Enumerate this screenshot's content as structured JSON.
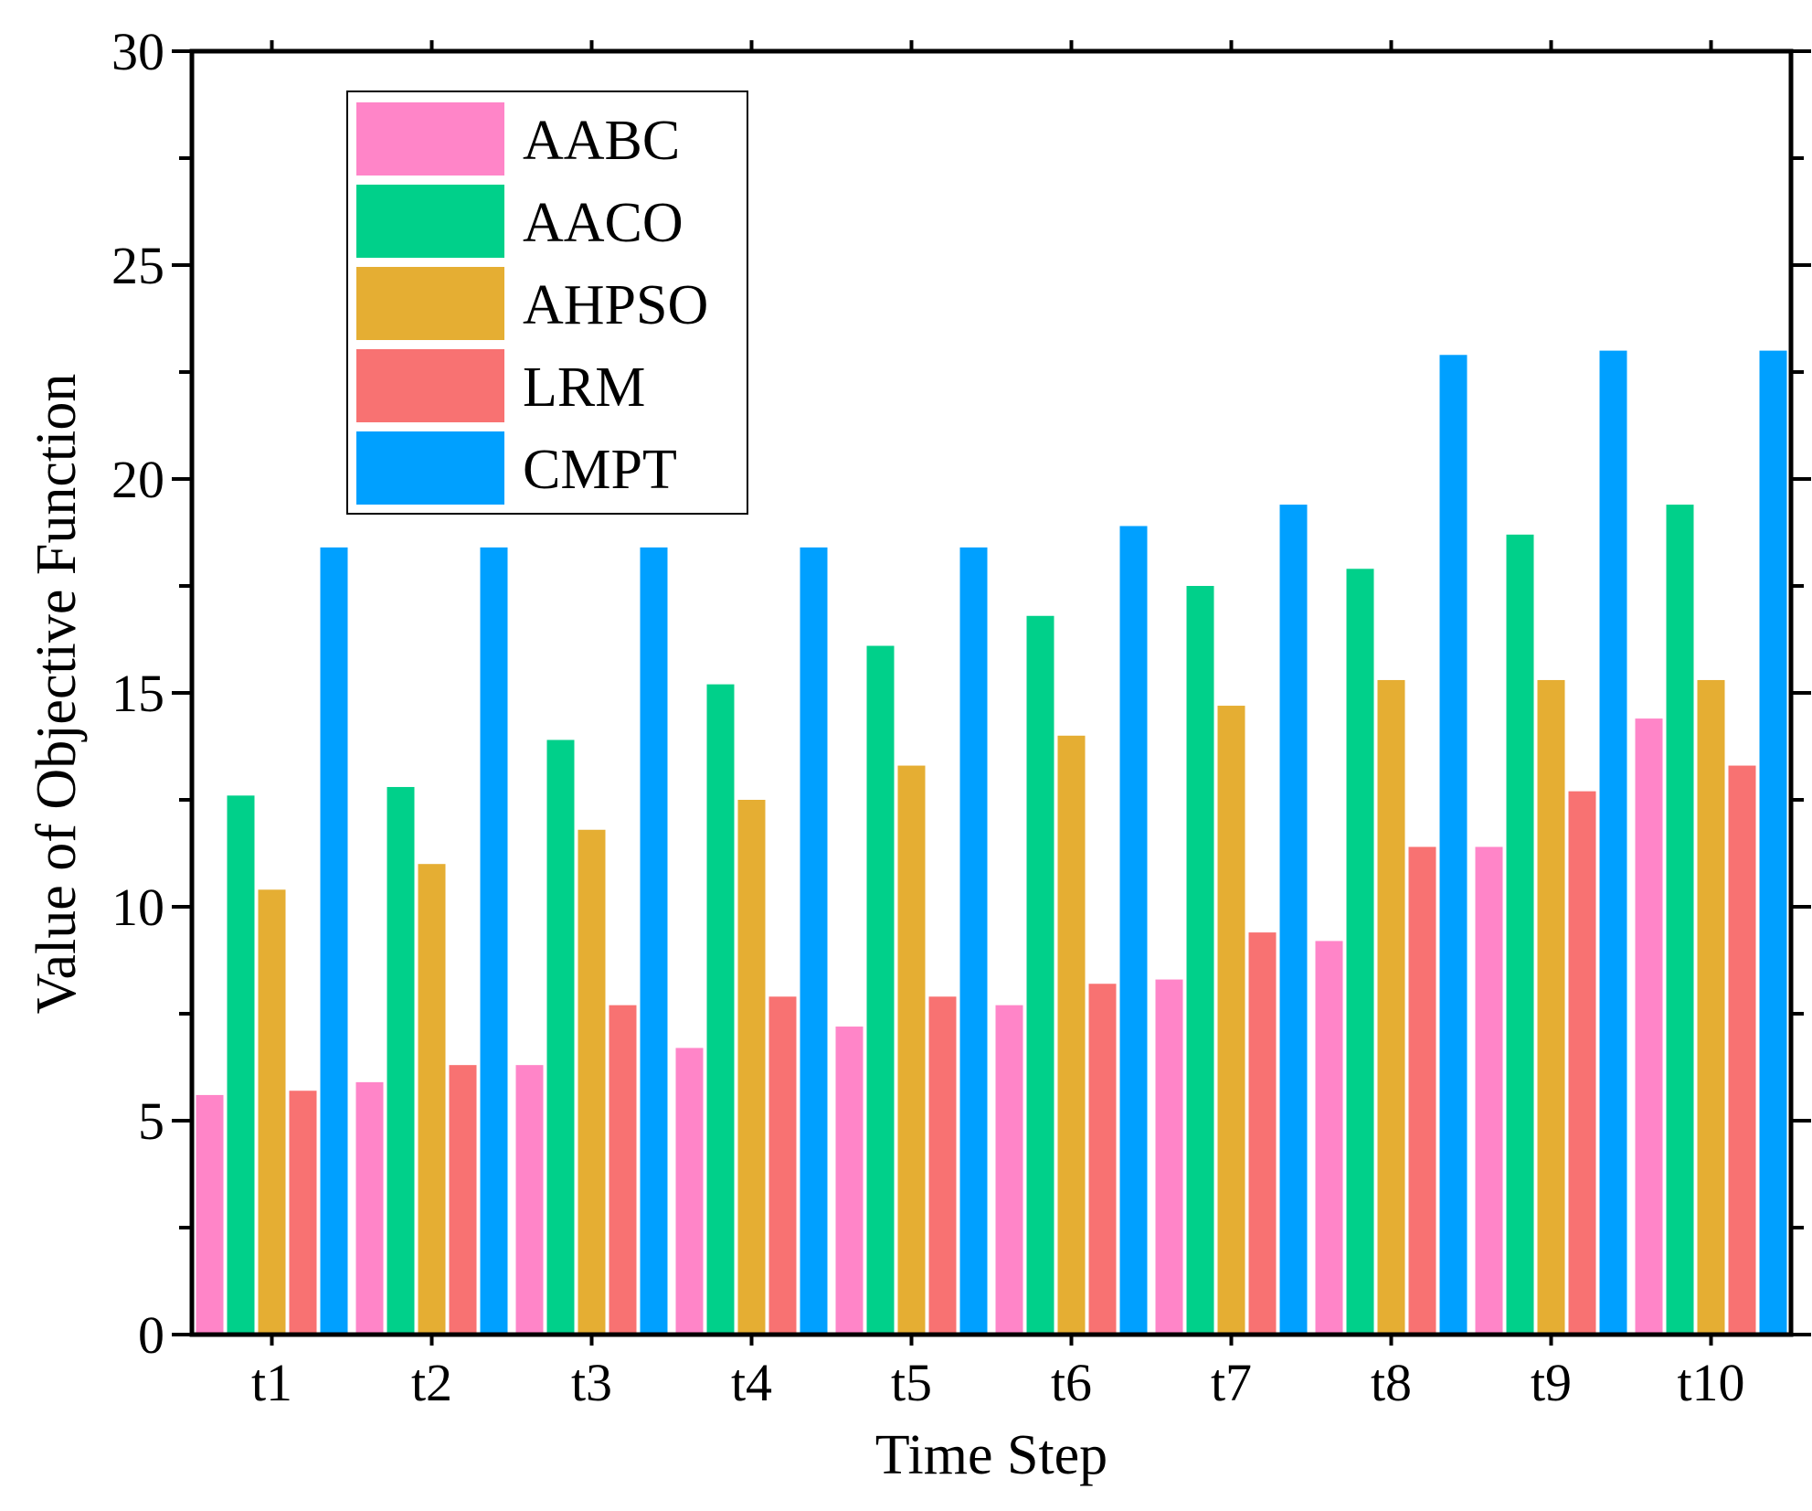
{
  "chart_data": {
    "type": "bar",
    "xlabel": "Time Step",
    "ylabel": "Value of Objective Function",
    "ylim": [
      0,
      30
    ],
    "yticks": [
      "0",
      "5",
      "10",
      "15",
      "20",
      "25",
      "30"
    ],
    "categories": [
      "t1",
      "t2",
      "t3",
      "t4",
      "t5",
      "t6",
      "t7",
      "t8",
      "t9",
      "t10"
    ],
    "series": [
      {
        "name": "AABC",
        "color": "#FF85C8",
        "values": [
          5.6,
          5.9,
          6.3,
          6.7,
          7.2,
          7.7,
          8.3,
          9.2,
          11.4,
          14.4
        ]
      },
      {
        "name": "AACO",
        "color": "#00D08A",
        "values": [
          12.6,
          12.8,
          13.9,
          15.2,
          16.1,
          16.8,
          17.5,
          17.9,
          18.7,
          19.4
        ]
      },
      {
        "name": "AHPSO",
        "color": "#E5AE33",
        "values": [
          10.4,
          11.0,
          11.8,
          12.5,
          13.3,
          14.0,
          14.7,
          15.3,
          15.3,
          15.3
        ]
      },
      {
        "name": "LRM",
        "color": "#F87272",
        "values": [
          5.7,
          6.3,
          7.7,
          7.9,
          7.9,
          8.2,
          9.4,
          11.4,
          12.7,
          13.3
        ]
      },
      {
        "name": "CMPT",
        "color": "#00A0FF",
        "values": [
          18.4,
          18.4,
          18.4,
          18.4,
          18.4,
          18.9,
          19.4,
          22.9,
          23.0,
          23.0
        ]
      }
    ],
    "legend_position": "top-left",
    "grid": false
  }
}
